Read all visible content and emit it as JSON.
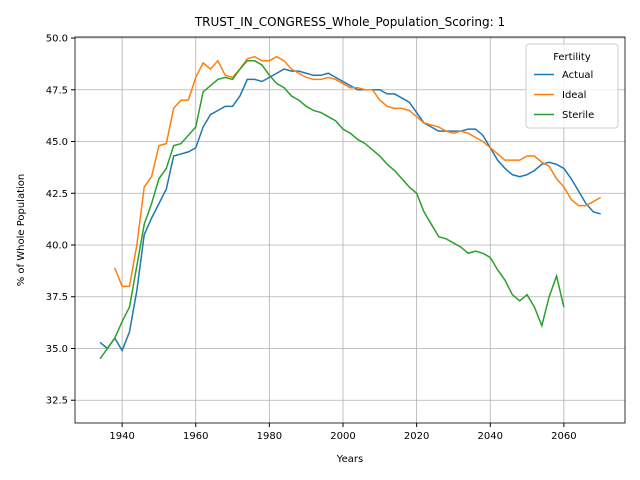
{
  "chart_data": {
    "type": "line",
    "title": "TRUST_IN_CONGRESS_Whole_Population_Scoring: 1",
    "xlabel": "Years",
    "ylabel": "% of Whole Population",
    "legend_title": "Fertility",
    "legend": "upper right",
    "grid": true,
    "xlim": [
      1927.2,
      2076.6
    ],
    "ylim": [
      31.4,
      50.05
    ],
    "xticks": [
      1940,
      1960,
      1980,
      2000,
      2020,
      2040,
      2060
    ],
    "yticks": [
      32.5,
      {
        "value": 35,
        "label": "35.0"
      },
      37.5,
      {
        "value": 40,
        "label": "40.0"
      },
      42.5,
      {
        "value": 45,
        "label": "45.0"
      },
      47.5,
      {
        "value": 50,
        "label": "50.0"
      }
    ],
    "x": [
      1934,
      1936,
      1938,
      1940,
      1942,
      1944,
      1946,
      1948,
      1950,
      1952,
      1954,
      1956,
      1958,
      1960,
      1962,
      1964,
      1966,
      1968,
      1970,
      1972,
      1974,
      1976,
      1978,
      1980,
      1982,
      1984,
      1986,
      1988,
      1990,
      1992,
      1994,
      1996,
      1998,
      2000,
      2002,
      2004,
      2006,
      2008,
      2010,
      2012,
      2014,
      2016,
      2018,
      2020,
      2022,
      2024,
      2026,
      2028,
      2030,
      2032,
      2034,
      2036,
      2038,
      2040,
      2042,
      2044,
      2046,
      2048,
      2050,
      2052,
      2054,
      2056,
      2058,
      2060,
      2062,
      2064,
      2066,
      2068,
      2070
    ],
    "series": [
      {
        "name": "Actual",
        "color": "#1f77b4",
        "values": [
          35.3,
          35.0,
          35.5,
          34.9,
          35.8,
          37.8,
          40.5,
          41.3,
          42.0,
          42.7,
          44.3,
          44.4,
          44.5,
          44.7,
          45.7,
          46.3,
          46.5,
          46.7,
          46.7,
          47.2,
          48.0,
          48.0,
          47.9,
          48.1,
          48.3,
          48.5,
          48.4,
          48.4,
          48.3,
          48.2,
          48.2,
          48.3,
          48.1,
          47.9,
          47.7,
          47.5,
          47.5,
          47.5,
          47.5,
          47.3,
          47.3,
          47.1,
          46.9,
          46.4,
          45.9,
          45.7,
          45.5,
          45.5,
          45.5,
          45.5,
          45.6,
          45.6,
          45.3,
          44.7,
          44.1,
          43.7,
          43.4,
          43.3,
          43.4,
          43.6,
          43.9,
          44.0,
          43.9,
          43.7,
          43.2,
          42.6,
          42.0,
          41.6,
          41.5
        ]
      },
      {
        "name": "Ideal",
        "color": "#ff7f0e",
        "values": [
          null,
          null,
          38.9,
          38.0,
          38.0,
          40.0,
          42.8,
          43.3,
          44.8,
          44.9,
          46.6,
          47.0,
          47.0,
          48.1,
          48.8,
          48.5,
          48.9,
          48.2,
          48.1,
          48.5,
          49.0,
          49.1,
          48.9,
          48.9,
          49.1,
          48.9,
          48.5,
          48.3,
          48.1,
          48.0,
          48.0,
          48.1,
          48.0,
          47.8,
          47.6,
          47.6,
          47.5,
          47.5,
          47.0,
          46.7,
          46.6,
          46.6,
          46.5,
          46.2,
          45.9,
          45.8,
          45.7,
          45.5,
          45.4,
          45.5,
          45.4,
          45.2,
          45.0,
          44.7,
          44.4,
          44.1,
          44.1,
          44.1,
          44.3,
          44.3,
          44.0,
          43.8,
          43.2,
          42.8,
          42.2,
          41.9,
          41.9,
          42.1,
          42.3
        ]
      },
      {
        "name": "Sterile",
        "color": "#2ca02c",
        "values": [
          34.5,
          35.0,
          35.5,
          36.3,
          37.0,
          39.0,
          41.0,
          42.0,
          43.2,
          43.7,
          44.8,
          44.9,
          45.3,
          45.7,
          47.4,
          47.7,
          48.0,
          48.1,
          48.0,
          48.5,
          48.9,
          48.9,
          48.7,
          48.2,
          47.8,
          47.6,
          47.2,
          47.0,
          46.7,
          46.5,
          46.4,
          46.2,
          46.0,
          45.6,
          45.4,
          45.1,
          44.9,
          44.6,
          44.3,
          43.9,
          43.6,
          43.2,
          42.8,
          42.5,
          41.6,
          41.0,
          40.4,
          40.3,
          40.1,
          39.9,
          39.6,
          39.7,
          39.6,
          39.4,
          38.8,
          38.3,
          37.6,
          37.3,
          37.6,
          37.0,
          36.1,
          37.5,
          38.5,
          37.0,
          null,
          null,
          null,
          null,
          null
        ]
      }
    ]
  }
}
